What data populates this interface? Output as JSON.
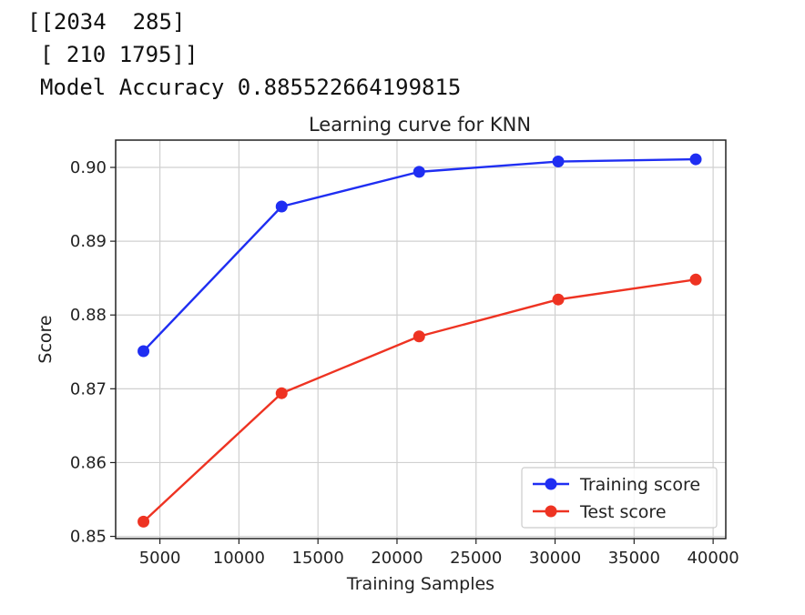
{
  "output": {
    "matrix_row_1": "[[2034  285]",
    "matrix_row_2": "[ 210 1795]]",
    "accuracy_line": "Model Accuracy 0.885522664199815"
  },
  "chart_data": {
    "type": "line",
    "title": "Learning curve for KNN",
    "xlabel": "Training Samples",
    "ylabel": "Score",
    "xlim": [
      2200,
      40800
    ],
    "ylim": [
      0.8497,
      0.9037
    ],
    "xticks": [
      5000,
      10000,
      15000,
      20000,
      25000,
      30000,
      35000,
      40000
    ],
    "xtick_labels": [
      "5000",
      "10000",
      "15000",
      "20000",
      "25000",
      "30000",
      "35000",
      "40000"
    ],
    "yticks": [
      0.85,
      0.86,
      0.87,
      0.88,
      0.89,
      0.9
    ],
    "ytick_labels": [
      "0.85",
      "0.86",
      "0.87",
      "0.88",
      "0.89",
      "0.90"
    ],
    "grid": true,
    "legend_position": "lower-right",
    "x": [
      3960,
      12700,
      21400,
      30200,
      38900
    ],
    "series": [
      {
        "name": "Training score",
        "color": "#1f2ef2",
        "marker": "circle",
        "values": [
          0.8751,
          0.8947,
          0.8994,
          0.9008,
          0.9011
        ]
      },
      {
        "name": "Test score",
        "color": "#ee3322",
        "marker": "circle",
        "values": [
          0.852,
          0.8694,
          0.8771,
          0.8821,
          0.8848
        ]
      }
    ]
  }
}
